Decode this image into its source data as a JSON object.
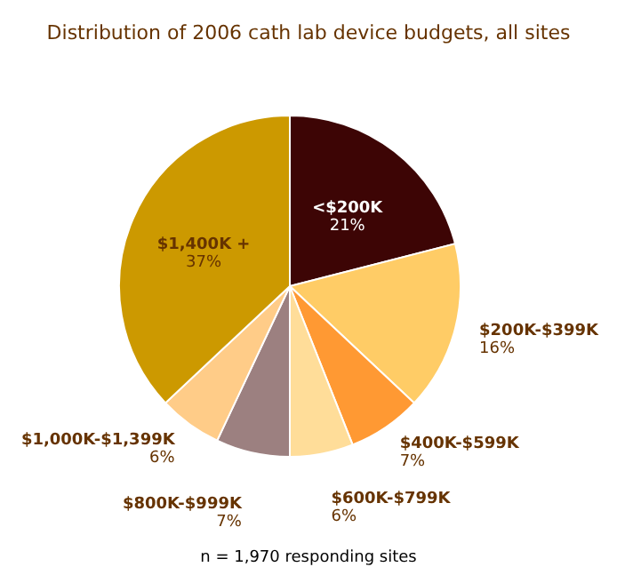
{
  "chart_data": {
    "type": "pie",
    "title": "Distribution of 2006 cath lab device budgets, all sites",
    "categories": [
      "<$200K",
      "$200K-$399K",
      "$400K-$599K",
      "$600K-$799K",
      "$800K-$999K",
      "$1,000K-$1,399K",
      "$1,400K +"
    ],
    "values": [
      21,
      16,
      7,
      6,
      7,
      6,
      37
    ],
    "colors": [
      "#3d0505",
      "#ffcc66",
      "#ff9933",
      "#ffdd99",
      "#9c8080",
      "#ffcc88",
      "#cc9900"
    ],
    "value_labels": [
      "21%",
      "16%",
      "7%",
      "6%",
      "7%",
      "6%",
      "37%"
    ],
    "annotations": [
      "n = 1,970 responding sites"
    ],
    "legend": false
  }
}
